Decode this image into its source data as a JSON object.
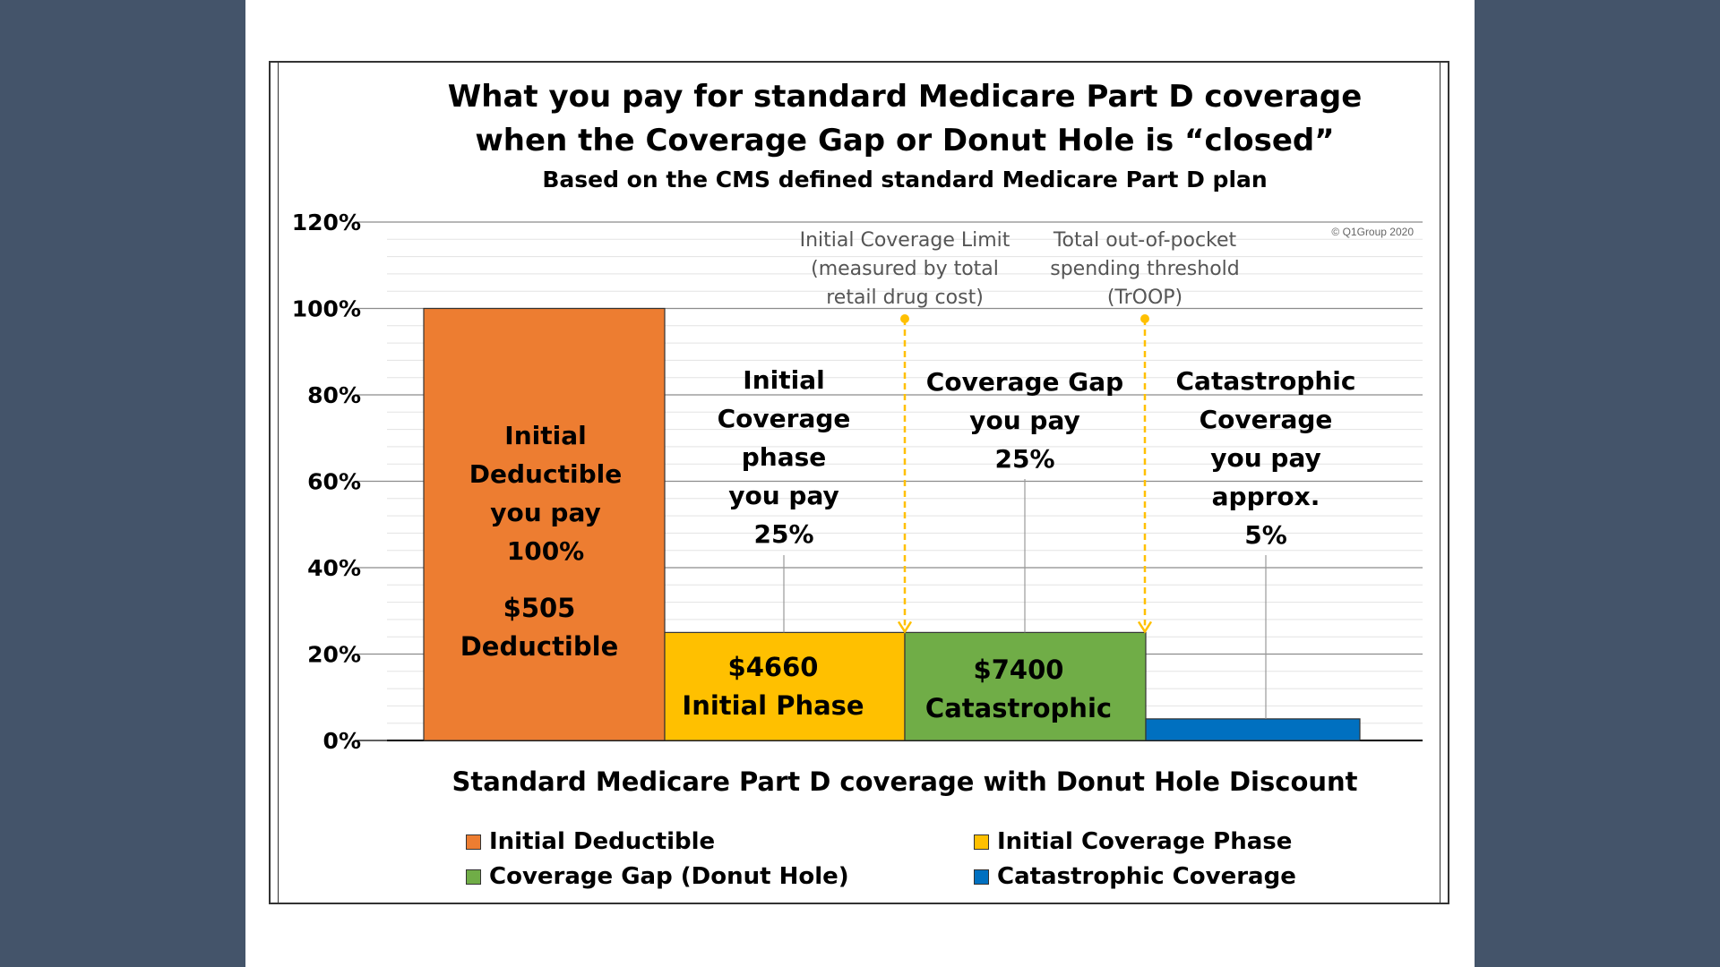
{
  "title_line1": "What you pay for standard Medicare Part D coverage",
  "title_line2": "when the Coverage Gap or Donut Hole is “closed”",
  "subtitle": "Based on the CMS defined standard Medicare Part D plan",
  "copyright": "© Q1Group 2020",
  "colors": {
    "deductible": "#ed7d31",
    "initial": "#ffc000",
    "gap": "#70ad47",
    "catastrophic": "#0070c0",
    "marker": "#ffc000",
    "grid_major": "#8c8c8c",
    "grid_minor": "#e3e3e3"
  },
  "chart_data": {
    "type": "bar",
    "title": "What you pay for standard Medicare Part D coverage when the Coverage Gap or Donut Hole is “closed”",
    "subtitle": "Based on the CMS defined standard Medicare Part D plan",
    "xlabel": "Standard Medicare Part D coverage with Donut Hole Discount",
    "ylabel": "",
    "ylim": [
      0,
      1.2
    ],
    "yticks": [
      0,
      0.2,
      0.4,
      0.6,
      0.8,
      1.0,
      1.2
    ],
    "ytick_labels": [
      "0%",
      "20%",
      "40%",
      "60%",
      "80%",
      "100%",
      "120%"
    ],
    "grid": true,
    "legend_position": "bottom",
    "series": [
      {
        "name": "Initial Deductible",
        "value": 1.0,
        "color_key": "deductible",
        "inner_label": [
          "Initial",
          "Deductible",
          "you pay",
          "100%"
        ],
        "amount_label": [
          "$505",
          "Deductible"
        ]
      },
      {
        "name": "Initial Coverage Phase",
        "value": 0.25,
        "color_key": "initial",
        "top_label": [
          "Initial",
          "Coverage",
          "phase",
          "you pay",
          "25%"
        ],
        "amount_label": [
          "$4660",
          "Initial Phase"
        ]
      },
      {
        "name": "Coverage Gap (Donut Hole)",
        "value": 0.25,
        "color_key": "gap",
        "top_label": [
          "Coverage Gap",
          "you pay",
          "25%"
        ],
        "amount_label": [
          "$7400",
          "Catastrophic"
        ]
      },
      {
        "name": "Catastrophic Coverage",
        "value": 0.05,
        "color_key": "catastrophic",
        "top_label": [
          "Catastrophic",
          "Coverage",
          "you pay",
          "approx.",
          "5%"
        ]
      }
    ],
    "annotations": [
      {
        "between_bars": [
          1,
          2
        ],
        "text": [
          "Initial Coverage Limit",
          "(measured by total",
          "retail drug cost)"
        ]
      },
      {
        "between_bars": [
          2,
          3
        ],
        "text": [
          "Total out-of-pocket",
          "spending threshold",
          "(TrOOP)"
        ]
      }
    ]
  },
  "legend": [
    {
      "label": "Initial Deductible",
      "color_key": "deductible"
    },
    {
      "label": "Initial Coverage Phase",
      "color_key": "initial"
    },
    {
      "label": "Coverage Gap (Donut Hole)",
      "color_key": "gap"
    },
    {
      "label": "Catastrophic Coverage",
      "color_key": "catastrophic"
    }
  ]
}
